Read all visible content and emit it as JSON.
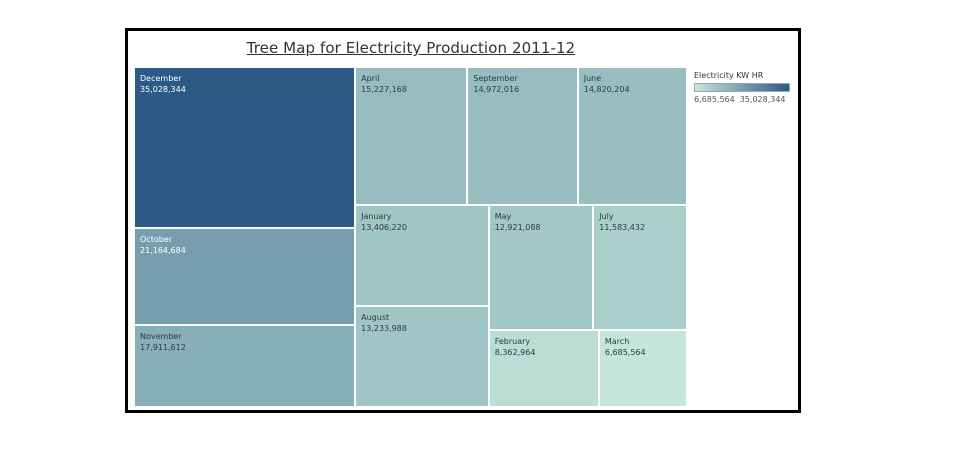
{
  "chart_data": {
    "type": "treemap",
    "title": "Tree Map for Electricity Production 2011-12",
    "legend": {
      "title": "Electricity KW HR",
      "min_label": "6,685,564",
      "max_label": "35,028,344",
      "min_color": "#c4e6d9",
      "max_color": "#2c5985",
      "placement": "top-right"
    },
    "items": [
      {
        "name": "December",
        "value": 35028344,
        "label": "35,028,344"
      },
      {
        "name": "October",
        "value": 21164684,
        "label": "21,164,684"
      },
      {
        "name": "November",
        "value": 17911612,
        "label": "17,911,612"
      },
      {
        "name": "April",
        "value": 15227168,
        "label": "15,227,168"
      },
      {
        "name": "September",
        "value": 14972016,
        "label": "14,972,016"
      },
      {
        "name": "June",
        "value": 14820204,
        "label": "14,820,204"
      },
      {
        "name": "January",
        "value": 13406220,
        "label": "13,406,220"
      },
      {
        "name": "May",
        "value": 12921088,
        "label": "12,921,088"
      },
      {
        "name": "July",
        "value": 11583432,
        "label": "11,583,432"
      },
      {
        "name": "August",
        "value": 13233988,
        "label": "13,233,988"
      },
      {
        "name": "February",
        "value": 8362964,
        "label": "8,362,964"
      },
      {
        "name": "March",
        "value": 6685564,
        "label": "6,685,564"
      }
    ]
  }
}
